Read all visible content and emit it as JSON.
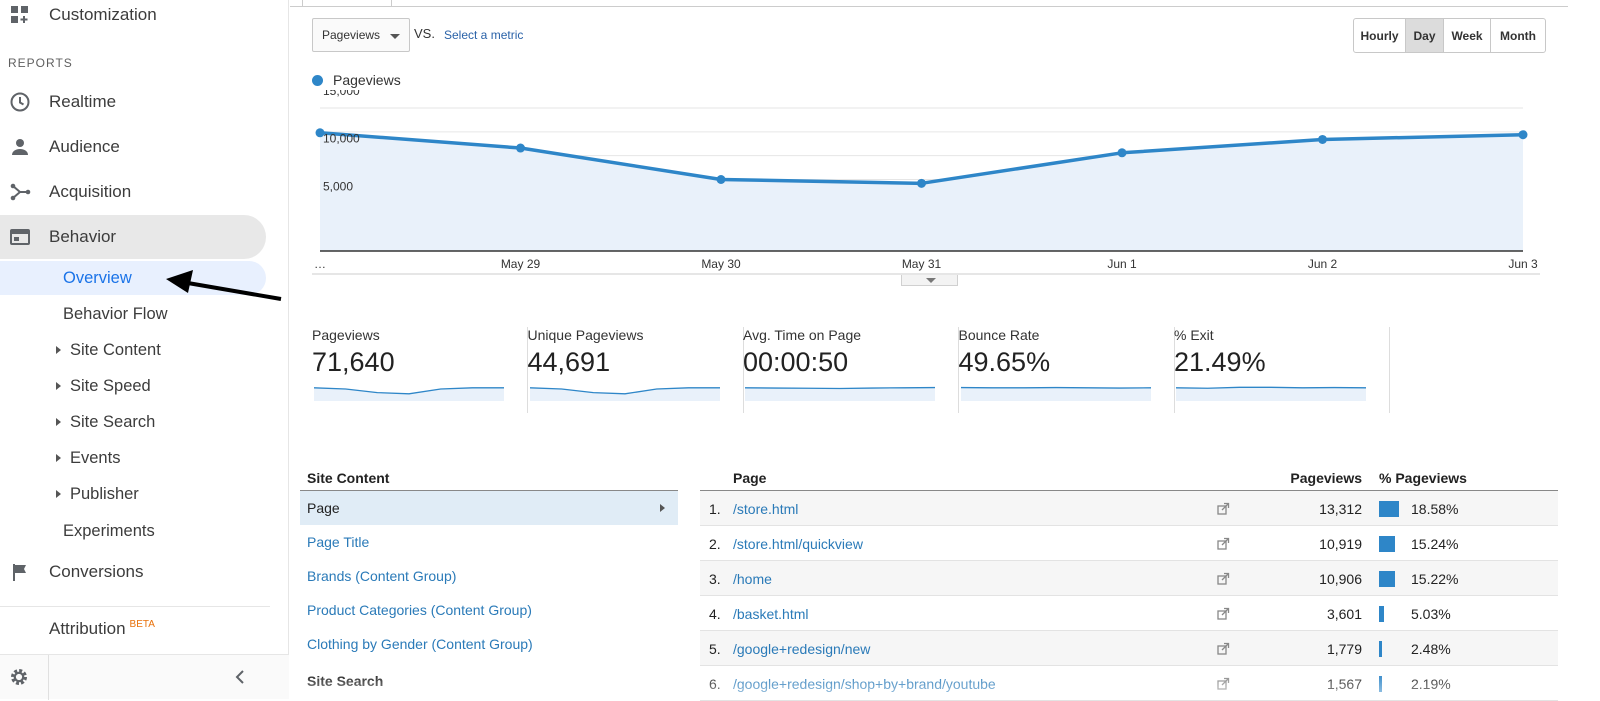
{
  "sidebar": {
    "customization": "Customization",
    "reports_header": "REPORTS",
    "realtime": "Realtime",
    "audience": "Audience",
    "acquisition": "Acquisition",
    "behavior": "Behavior",
    "overview": "Overview",
    "behavior_flow": "Behavior Flow",
    "site_content": "Site Content",
    "site_speed": "Site Speed",
    "site_search": "Site Search",
    "events": "Events",
    "publisher": "Publisher",
    "experiments": "Experiments",
    "conversions": "Conversions",
    "attribution": "Attribution",
    "beta": "BETA"
  },
  "toolbar": {
    "metric": "Pageviews",
    "vs": "VS.",
    "select_metric": "Select a metric",
    "ranges": [
      "Hourly",
      "Day",
      "Week",
      "Month"
    ],
    "active_range": "Day"
  },
  "legend": {
    "label": "Pageviews",
    "color": "#2e86c8"
  },
  "chart_data": {
    "type": "line",
    "title": "",
    "categories": [
      "…",
      "May 29",
      "May 30",
      "May 31",
      "Jun 1",
      "Jun 2",
      "Jun 3"
    ],
    "series": [
      {
        "name": "Pageviews",
        "values": [
          12400,
          10800,
          7500,
          7100,
          10300,
          11700,
          12200
        ]
      }
    ],
    "y_ticks": [
      "15,000",
      "10,000",
      "5,000"
    ],
    "ylim": [
      0,
      15000
    ],
    "grid": true
  },
  "scorecards": [
    {
      "name": "Pageviews",
      "value": "71,640",
      "spark": [
        0.55,
        0.5,
        0.35,
        0.3,
        0.5,
        0.55,
        0.55
      ]
    },
    {
      "name": "Unique Pageviews",
      "value": "44,691",
      "spark": [
        0.55,
        0.5,
        0.35,
        0.3,
        0.5,
        0.55,
        0.55
      ]
    },
    {
      "name": "Avg. Time on Page",
      "value": "00:00:50",
      "spark": [
        0.55,
        0.54,
        0.53,
        0.52,
        0.54,
        0.55,
        0.56
      ]
    },
    {
      "name": "Bounce Rate",
      "value": "49.65%",
      "spark": [
        0.56,
        0.55,
        0.55,
        0.56,
        0.55,
        0.54,
        0.55
      ]
    },
    {
      "name": "% Exit",
      "value": "21.49%",
      "spark": [
        0.55,
        0.53,
        0.57,
        0.57,
        0.55,
        0.56,
        0.55
      ]
    }
  ],
  "site_content": {
    "header": "Site Content",
    "items": [
      "Page",
      "Page Title",
      "Brands (Content Group)",
      "Product Categories (Content Group)",
      "Clothing by Gender (Content Group)"
    ],
    "next_header": "Site Search"
  },
  "pages_table": {
    "headers": {
      "page": "Page",
      "pageviews": "Pageviews",
      "pct": "% Pageviews"
    },
    "rows": [
      {
        "num": "1.",
        "page": "/store.html",
        "pageviews": "13,312",
        "pct": "18.58%",
        "share": 18.58
      },
      {
        "num": "2.",
        "page": "/store.html/quickview",
        "pageviews": "10,919",
        "pct": "15.24%",
        "share": 15.24
      },
      {
        "num": "3.",
        "page": "/home",
        "pageviews": "10,906",
        "pct": "15.22%",
        "share": 15.22
      },
      {
        "num": "4.",
        "page": "/basket.html",
        "pageviews": "3,601",
        "pct": "5.03%",
        "share": 5.03
      },
      {
        "num": "5.",
        "page": "/google+redesign/new",
        "pageviews": "1,779",
        "pct": "2.48%",
        "share": 2.48
      },
      {
        "num": "6.",
        "page": "/google+redesign/shop+by+brand/youtube",
        "pageviews": "1,567",
        "pct": "2.19%",
        "share": 2.19
      }
    ]
  }
}
